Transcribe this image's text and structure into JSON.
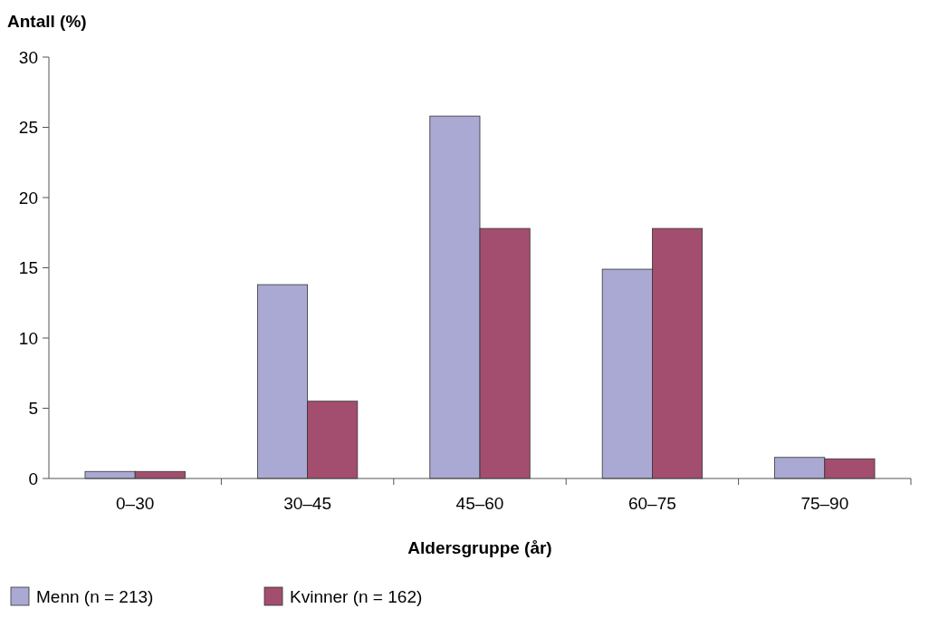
{
  "chart_data": {
    "type": "bar",
    "ylabel": "Antall (%)",
    "xlabel": "Aldersgruppe (år)",
    "categories": [
      "0–30",
      "30–45",
      "45–60",
      "60–75",
      "75–90"
    ],
    "series": [
      {
        "name": "Menn (n = 213)",
        "color": "#aaa9d3",
        "values": [
          0.5,
          13.8,
          25.8,
          14.9,
          1.5
        ]
      },
      {
        "name": "Kvinner (n = 162)",
        "color": "#a34e6e",
        "values": [
          0.5,
          5.5,
          17.8,
          17.8,
          1.4
        ]
      }
    ],
    "ylim": [
      0,
      30
    ],
    "yticks": [
      0,
      5,
      10,
      15,
      20,
      25,
      30
    ],
    "grid": false,
    "legend": "bottom left"
  }
}
